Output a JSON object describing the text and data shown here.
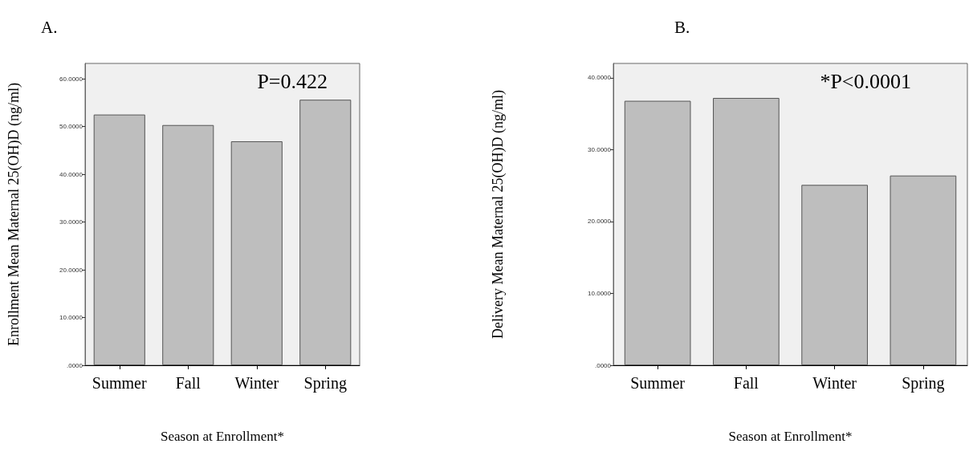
{
  "chart_data": [
    {
      "type": "bar",
      "title": "A.",
      "xlabel": "Season at Enrollment*",
      "ylabel": "Enrollment Mean Maternal 25(OH)D (ng/ml)",
      "annotations": [
        "P=0.422"
      ],
      "categories": [
        "Summer",
        "Fall",
        "Winter",
        "Spring"
      ],
      "values": [
        52.5,
        50.3,
        46.9,
        55.6
      ],
      "color": "#bebebe",
      "ylim": [
        0,
        63.2
      ],
      "yticks": [
        {
          "value": 0,
          "label": ".0000"
        },
        {
          "value": 10,
          "label": "10.0000"
        },
        {
          "value": 20,
          "label": "20.0000"
        },
        {
          "value": 30,
          "label": "30.0000"
        },
        {
          "value": 40,
          "label": "40.0000"
        },
        {
          "value": 50,
          "label": "50.0000"
        },
        {
          "value": 60,
          "label": "60.0000"
        }
      ],
      "grid": false
    },
    {
      "type": "bar",
      "title": "B.",
      "xlabel": "Season at Enrollment*",
      "ylabel": "Delivery Mean Maternal 25(OH)D (ng/ml)",
      "annotations": [
        "*P<0.0001"
      ],
      "categories": [
        "Summer",
        "Fall",
        "Winter",
        "Spring"
      ],
      "values": [
        36.8,
        37.2,
        25.1,
        26.4
      ],
      "color": "#bebebe",
      "ylim": [
        0,
        42
      ],
      "yticks": [
        {
          "value": 0,
          "label": ".0000"
        },
        {
          "value": 10,
          "label": "10.0000"
        },
        {
          "value": 20,
          "label": "20.0000"
        },
        {
          "value": 30,
          "label": "30.0000"
        },
        {
          "value": 40,
          "label": "40.0000"
        }
      ],
      "grid": false
    }
  ]
}
